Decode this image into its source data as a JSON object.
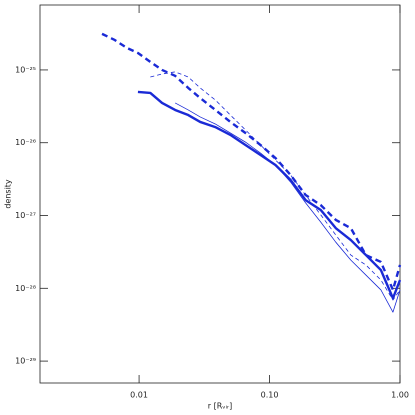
{
  "chart_data": {
    "type": "line",
    "x_label": "r [Rᵥᵢᵣ]",
    "y_label": "density",
    "x": [
      0.0052,
      0.0065,
      0.0081,
      0.0098,
      0.0122,
      0.015,
      0.0189,
      0.0238,
      0.0294,
      0.0384,
      0.0501,
      0.0654,
      0.0853,
      0.111,
      0.145,
      0.189,
      0.247,
      0.322,
      0.42,
      0.548,
      0.714,
      0.883,
      1.0
    ],
    "series": [
      {
        "color": "#1a2ad6",
        "style": "dashed",
        "line_width": 2.4,
        "values": [
          3.13e-25,
          2.58e-25,
          2e-25,
          1.71e-25,
          1.29e-25,
          1e-25,
          8.3e-26,
          5.66e-26,
          4.12e-26,
          2.82e-26,
          1.93e-26,
          1.36e-26,
          9.3e-27,
          6.17e-27,
          3.6e-27,
          1.91e-27,
          1.39e-27,
          8.7e-28,
          6.7e-28,
          2.86e-28,
          2.3e-28,
          9.5e-29,
          2.09e-28
        ]
      },
      {
        "color": "#1a2ad6",
        "style": "solid",
        "line_width": 2.4,
        "values": [
          null,
          null,
          null,
          4.99e-26,
          4.83e-26,
          3.52e-26,
          2.82e-26,
          2.4e-26,
          1.93e-26,
          1.64e-26,
          1.28e-26,
          9.3e-27,
          6.79e-27,
          4.94e-27,
          3.08e-27,
          1.63e-27,
          1.19e-27,
          6.7e-28,
          4.6e-28,
          2.86e-28,
          1.78e-28,
          7.3e-29,
          1.3e-28
        ]
      },
      {
        "color": "#1a2ad6",
        "style": "dashed",
        "line_width": 0.8,
        "values": [
          null,
          null,
          null,
          null,
          8e-26,
          8.8e-26,
          9.4e-26,
          8e-26,
          5.66e-26,
          3.87e-26,
          2.4e-26,
          1.5e-26,
          9.3e-27,
          5.8e-27,
          3.6e-27,
          1.91e-27,
          1.02e-27,
          5.4e-28,
          2.86e-28,
          2.09e-28,
          1.3e-28,
          6.9e-29,
          9.5e-29
        ]
      },
      {
        "color": "#1a2ad6",
        "style": "solid",
        "line_width": 0.8,
        "values": [
          null,
          null,
          null,
          null,
          null,
          null,
          3.52e-26,
          2.82e-26,
          2.26e-26,
          1.81e-26,
          1.36e-26,
          1.02e-26,
          7.2e-27,
          4.94e-27,
          2.88e-27,
          1.49e-27,
          8.1e-28,
          4.3e-28,
          2.44e-28,
          1.52e-28,
          9.5e-29,
          4.7e-29,
          9.5e-29
        ]
      }
    ],
    "xlim": [
      0.00174,
      1.0
    ],
    "ylim": [
      5e-30,
      7.8e-25
    ],
    "x_log": true,
    "y_log": true,
    "xticks": [
      0.01,
      {
        "value": 0.1,
        "label": "0.10"
      },
      {
        "value": 1,
        "label": "1.00"
      }
    ],
    "yticks": [
      {
        "value": 1e-29,
        "label": "10⁻²⁹"
      },
      {
        "value": 1e-28,
        "label": "10⁻²⁸"
      },
      {
        "value": 1e-27,
        "label": "10⁻²⁷"
      },
      {
        "value": 1e-26,
        "label": "10⁻²⁶"
      },
      {
        "value": 1e-25,
        "label": "10⁻²⁵"
      }
    ]
  }
}
